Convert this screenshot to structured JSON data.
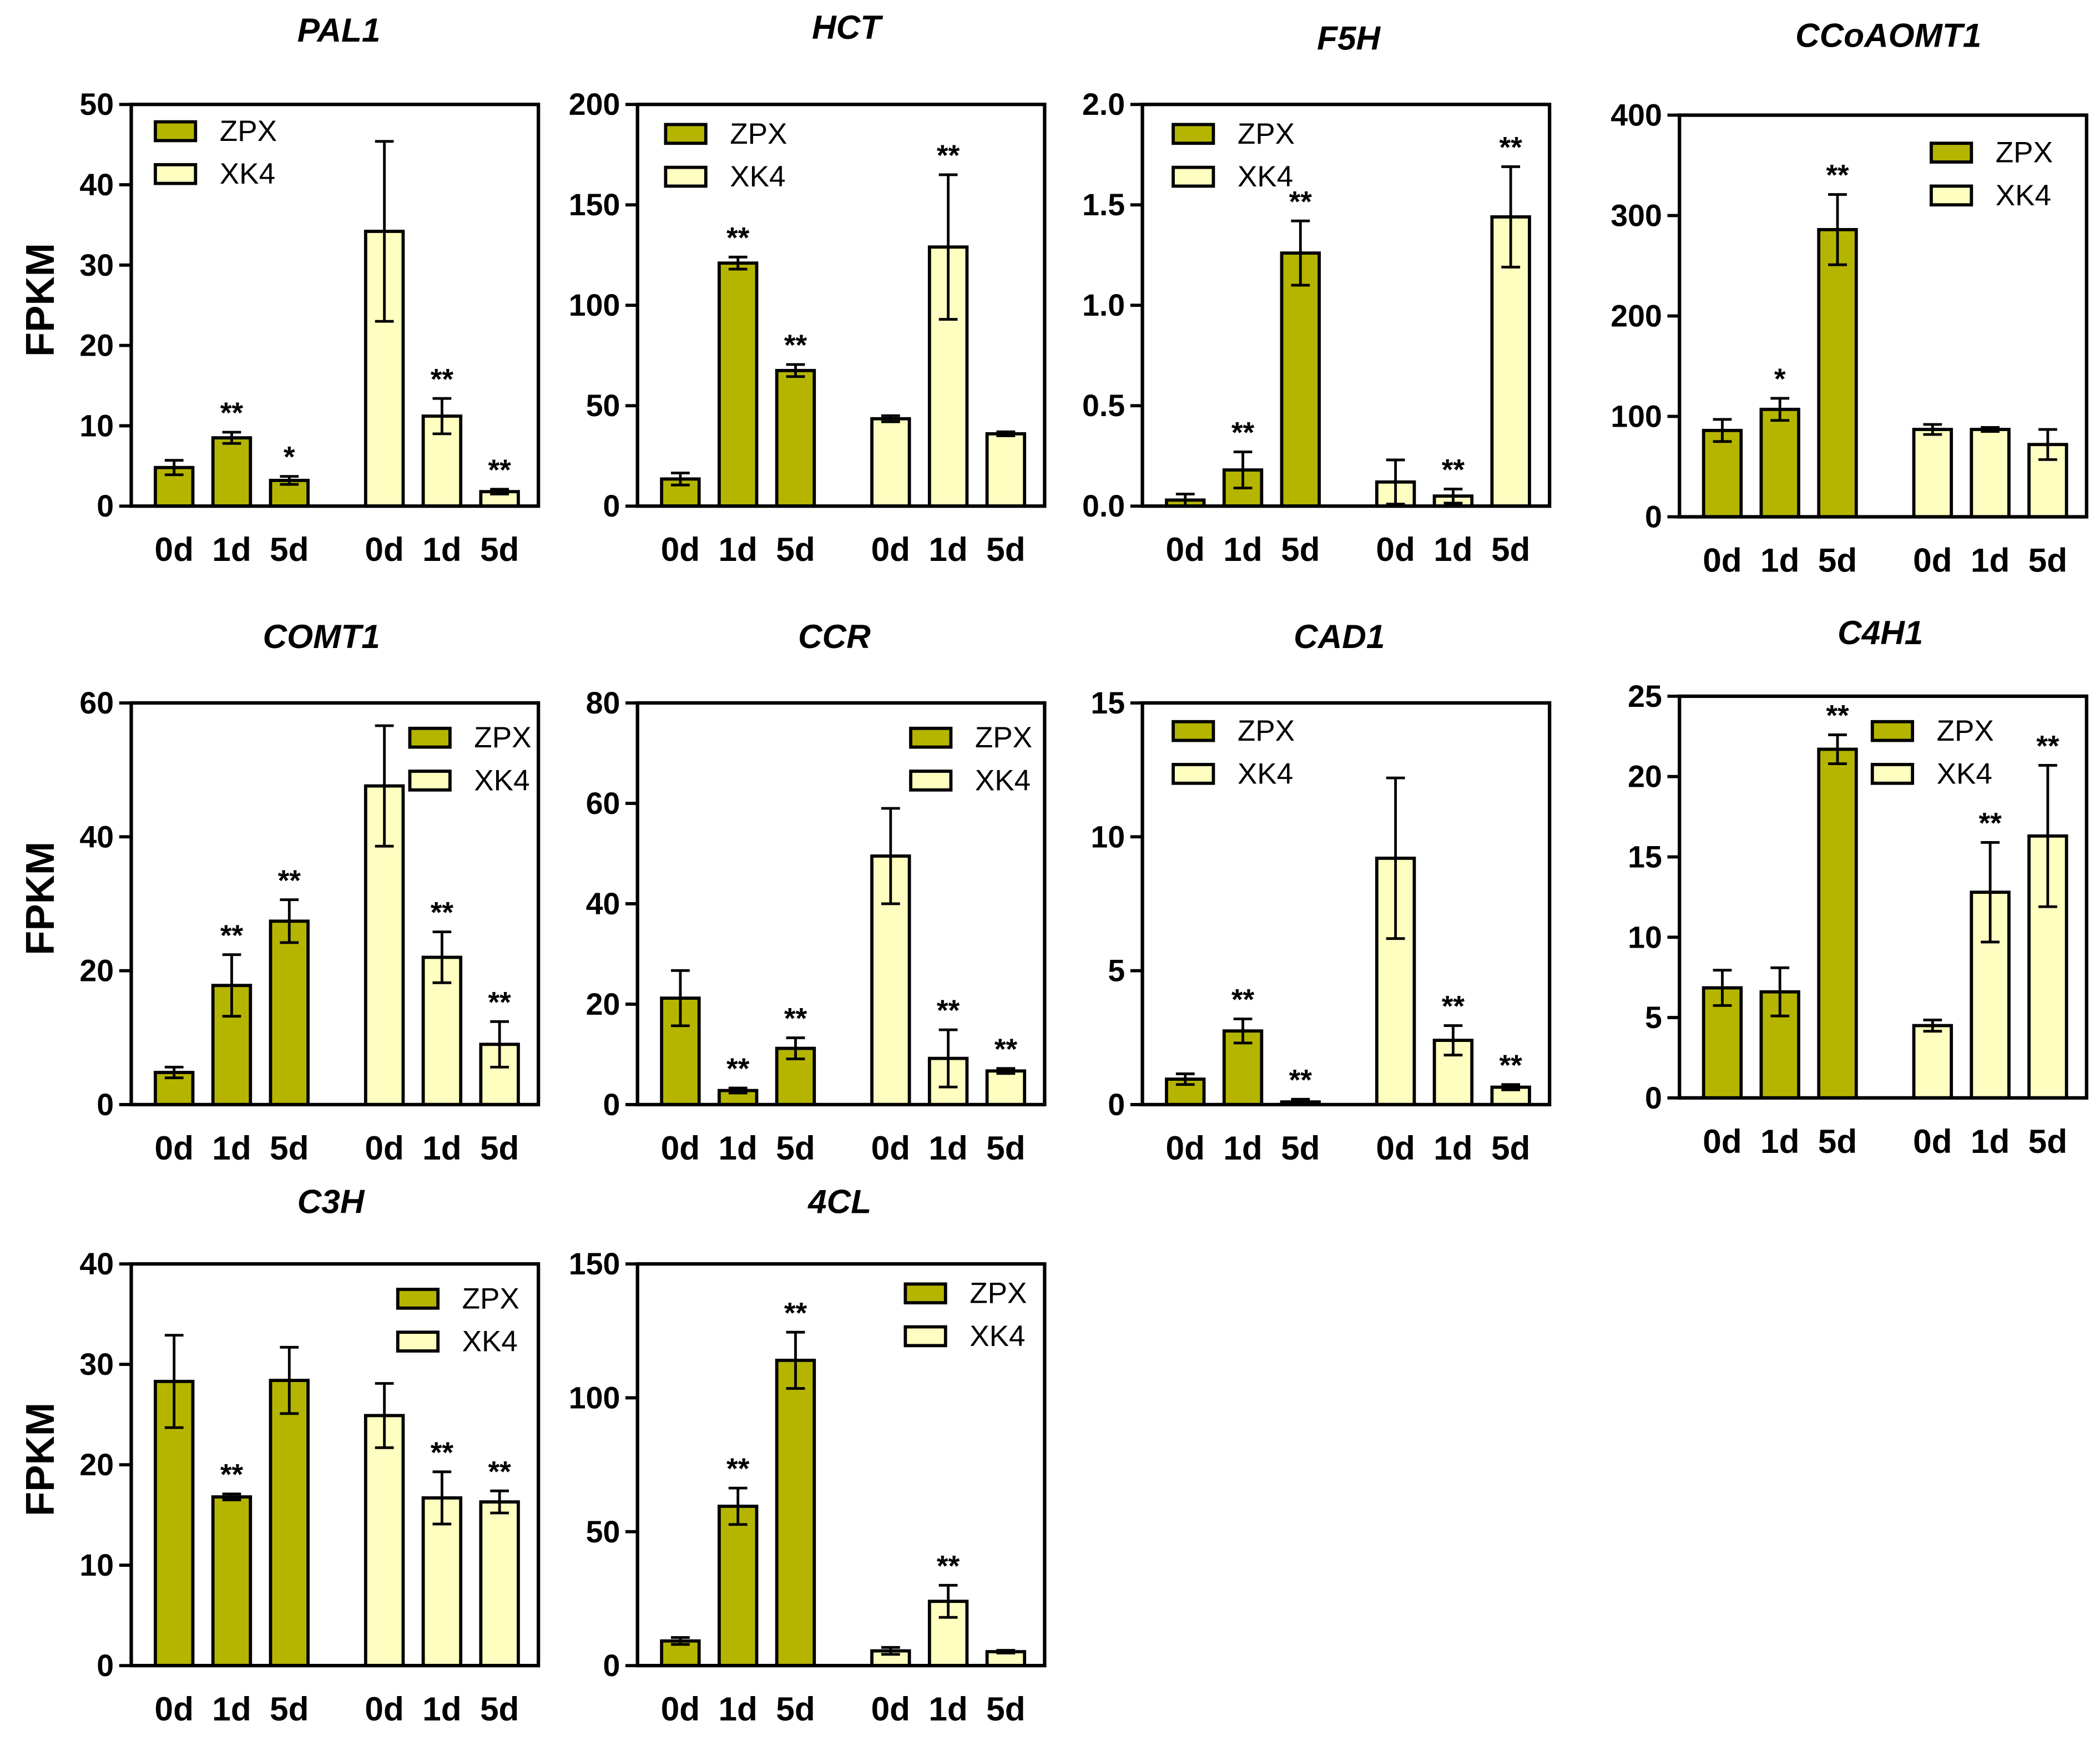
{
  "chart_data": [
    {
      "type": "bar",
      "title": "PAL1",
      "ylabel": "FPKM",
      "ylim": [
        0,
        50
      ],
      "yticks": [
        0,
        10,
        20,
        30,
        40,
        50
      ],
      "ytick_labels": [
        "0",
        "10",
        "20",
        "30",
        "40",
        "50"
      ],
      "categories": [
        "0d",
        "1d",
        "5d"
      ],
      "legend": "upper-left",
      "grid": false,
      "series": [
        {
          "name": "ZPX",
          "color": "#b5b500",
          "values": [
            4.8,
            8.5,
            3.2
          ],
          "errors": [
            0.9,
            0.7,
            0.5
          ],
          "significance": [
            null,
            "**",
            "*"
          ]
        },
        {
          "name": "XK4",
          "color": "#fefec0",
          "values": [
            34.2,
            11.2,
            1.8
          ],
          "errors": [
            11.2,
            2.2,
            0.3
          ],
          "significance": [
            null,
            "**",
            "**"
          ]
        }
      ]
    },
    {
      "type": "bar",
      "title": "HCT",
      "ylim": [
        0,
        200
      ],
      "yticks": [
        0,
        50,
        100,
        150,
        200
      ],
      "ytick_labels": [
        "0",
        "50",
        "100",
        "150",
        "200"
      ],
      "categories": [
        "0d",
        "1d",
        "5d"
      ],
      "legend": "upper-left",
      "grid": false,
      "series": [
        {
          "name": "ZPX",
          "color": "#b5b500",
          "values": [
            13.5,
            121,
            67.5
          ],
          "errors": [
            3,
            3,
            3
          ],
          "significance": [
            null,
            "**",
            "**"
          ]
        },
        {
          "name": "XK4",
          "color": "#fefec0",
          "values": [
            43.5,
            129,
            36
          ],
          "errors": [
            1.5,
            36,
            1
          ],
          "significance": [
            null,
            "**",
            null
          ]
        }
      ]
    },
    {
      "type": "bar",
      "title": "F5H",
      "ylim": [
        0,
        2.0
      ],
      "yticks": [
        0,
        0.5,
        1.0,
        1.5,
        2.0
      ],
      "ytick_labels": [
        "0.0",
        "0.5",
        "1.0",
        "1.5",
        "2.0"
      ],
      "categories": [
        "0d",
        "1d",
        "5d"
      ],
      "legend": "upper-left",
      "grid": false,
      "series": [
        {
          "name": "ZPX",
          "color": "#b5b500",
          "values": [
            0.03,
            0.18,
            1.26
          ],
          "errors": [
            0.03,
            0.09,
            0.16
          ],
          "significance": [
            null,
            "**",
            "**"
          ]
        },
        {
          "name": "XK4",
          "color": "#fefec0",
          "values": [
            0.12,
            0.05,
            1.44
          ],
          "errors": [
            0.11,
            0.035,
            0.25
          ],
          "significance": [
            null,
            "**",
            "**"
          ]
        }
      ]
    },
    {
      "type": "bar",
      "title": "CCoAOMT1",
      "ylim": [
        0,
        400
      ],
      "yticks": [
        0,
        100,
        200,
        300,
        400
      ],
      "ytick_labels": [
        "0",
        "100",
        "200",
        "300",
        "400"
      ],
      "categories": [
        "0d",
        "1d",
        "5d"
      ],
      "legend": "upper-right",
      "grid": false,
      "series": [
        {
          "name": "ZPX",
          "color": "#b5b500",
          "values": [
            86,
            107,
            286
          ],
          "errors": [
            11,
            11,
            35
          ],
          "significance": [
            null,
            "*",
            "**"
          ]
        },
        {
          "name": "XK4",
          "color": "#fefec0",
          "values": [
            87,
            87,
            72
          ],
          "errors": [
            5,
            2,
            15
          ],
          "significance": [
            null,
            null,
            null
          ]
        }
      ]
    },
    {
      "type": "bar",
      "title": "COMT1",
      "ylabel": "FPKM",
      "ylim": [
        0,
        60
      ],
      "yticks": [
        0,
        20,
        40,
        60
      ],
      "ytick_labels": [
        "0",
        "20",
        "40",
        "60"
      ],
      "categories": [
        "0d",
        "1d",
        "5d"
      ],
      "legend": "upper-right",
      "grid": false,
      "series": [
        {
          "name": "ZPX",
          "color": "#b5b500",
          "values": [
            4.8,
            17.8,
            27.4
          ],
          "errors": [
            0.8,
            4.6,
            3.2
          ],
          "significance": [
            null,
            "**",
            "**"
          ]
        },
        {
          "name": "XK4",
          "color": "#fefec0",
          "values": [
            47.6,
            22,
            9
          ],
          "errors": [
            9,
            3.8,
            3.4
          ],
          "significance": [
            null,
            "**",
            "**"
          ]
        }
      ]
    },
    {
      "type": "bar",
      "title": "CCR",
      "ylim": [
        0,
        80
      ],
      "yticks": [
        0,
        20,
        40,
        60,
        80
      ],
      "ytick_labels": [
        "0",
        "20",
        "40",
        "60",
        "80"
      ],
      "categories": [
        "0d",
        "1d",
        "5d"
      ],
      "legend": "upper-right",
      "grid": false,
      "series": [
        {
          "name": "ZPX",
          "color": "#b5b500",
          "values": [
            21.2,
            2.8,
            11.2
          ],
          "errors": [
            5.5,
            0.5,
            2.1
          ],
          "significance": [
            null,
            "**",
            "**"
          ]
        },
        {
          "name": "XK4",
          "color": "#fefec0",
          "values": [
            49.5,
            9.2,
            6.7
          ],
          "errors": [
            9.5,
            5.7,
            0.5
          ],
          "significance": [
            null,
            "**",
            "**"
          ]
        }
      ]
    },
    {
      "type": "bar",
      "title": "CAD1",
      "ylim": [
        0,
        15
      ],
      "yticks": [
        0,
        5,
        10,
        15
      ],
      "ytick_labels": [
        "0",
        "5",
        "10",
        "15"
      ],
      "categories": [
        "0d",
        "1d",
        "5d"
      ],
      "legend": "upper-left",
      "grid": false,
      "series": [
        {
          "name": "ZPX",
          "color": "#b5b500",
          "values": [
            0.95,
            2.75,
            0.1
          ],
          "errors": [
            0.2,
            0.45,
            0.1
          ],
          "significance": [
            null,
            "**",
            "**"
          ]
        },
        {
          "name": "XK4",
          "color": "#fefec0",
          "values": [
            9.2,
            2.4,
            0.65
          ],
          "errors": [
            3.0,
            0.55,
            0.1
          ],
          "significance": [
            null,
            "**",
            "**"
          ]
        }
      ]
    },
    {
      "type": "bar",
      "title": "C4H1",
      "ylim": [
        0,
        25
      ],
      "yticks": [
        0,
        5,
        10,
        15,
        20,
        25
      ],
      "ytick_labels": [
        "0",
        "5",
        "10",
        "15",
        "20",
        "25"
      ],
      "categories": [
        "0d",
        "1d",
        "5d"
      ],
      "legend": "upper-center",
      "grid": false,
      "series": [
        {
          "name": "ZPX",
          "color": "#b5b500",
          "values": [
            6.85,
            6.6,
            21.7
          ],
          "errors": [
            1.1,
            1.5,
            0.9
          ],
          "significance": [
            null,
            null,
            "**"
          ]
        },
        {
          "name": "XK4",
          "color": "#fefec0",
          "values": [
            4.5,
            12.8,
            16.3
          ],
          "errors": [
            0.35,
            3.1,
            4.4
          ],
          "significance": [
            null,
            "**",
            "**"
          ]
        }
      ]
    },
    {
      "type": "bar",
      "title": "C3H",
      "ylabel": "FPKM",
      "ylim": [
        0,
        40
      ],
      "yticks": [
        0,
        10,
        20,
        30,
        40
      ],
      "ytick_labels": [
        "0",
        "10",
        "20",
        "30",
        "40"
      ],
      "categories": [
        "0d",
        "1d",
        "5d"
      ],
      "legend": "upper-right",
      "grid": false,
      "series": [
        {
          "name": "ZPX",
          "color": "#b5b500",
          "values": [
            28.3,
            16.8,
            28.4
          ],
          "errors": [
            4.6,
            0.3,
            3.3
          ],
          "significance": [
            null,
            "**",
            null
          ]
        },
        {
          "name": "XK4",
          "color": "#fefec0",
          "values": [
            24.9,
            16.7,
            16.3
          ],
          "errors": [
            3.2,
            2.6,
            1.1
          ],
          "significance": [
            null,
            "**",
            "**"
          ]
        }
      ]
    },
    {
      "type": "bar",
      "title": "4CL",
      "ylim": [
        0,
        150
      ],
      "yticks": [
        0,
        50,
        100,
        150
      ],
      "ytick_labels": [
        "0",
        "50",
        "100",
        "150"
      ],
      "categories": [
        "0d",
        "1d",
        "5d"
      ],
      "legend": "upper-right",
      "grid": false,
      "series": [
        {
          "name": "ZPX",
          "color": "#b5b500",
          "values": [
            9.2,
            59.5,
            114
          ],
          "errors": [
            1.3,
            6.8,
            10.5
          ],
          "significance": [
            null,
            "**",
            "**"
          ]
        },
        {
          "name": "XK4",
          "color": "#fefec0",
          "values": [
            5.5,
            24,
            5.2
          ],
          "errors": [
            1.3,
            6,
            0.5
          ],
          "significance": [
            null,
            "**",
            null
          ]
        }
      ]
    }
  ]
}
